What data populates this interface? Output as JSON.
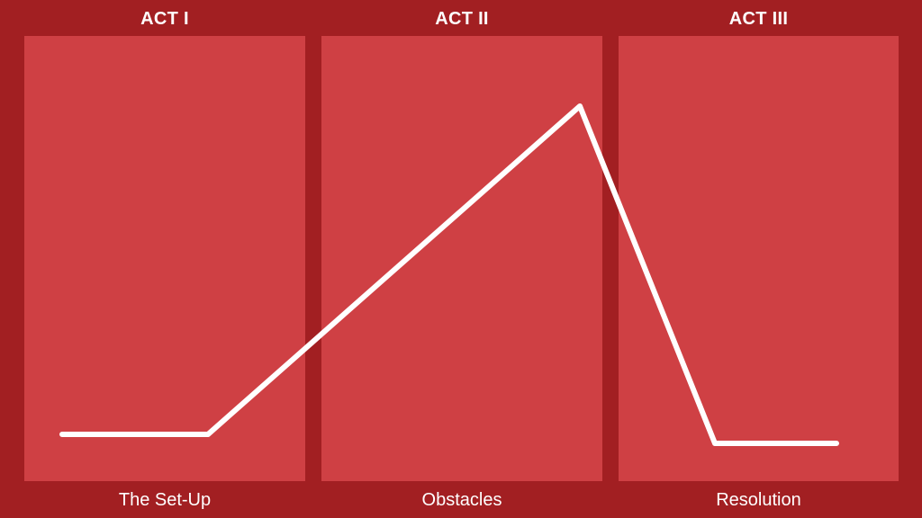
{
  "acts": [
    {
      "title": "ACT I",
      "caption": "The Set-Up"
    },
    {
      "title": "ACT II",
      "caption": "Obstacles"
    },
    {
      "title": "ACT III",
      "caption": "Resolution"
    }
  ],
  "colors": {
    "background": "#a21f22",
    "panel": "#cf4044",
    "text": "#ffffff",
    "line": "#ffffff"
  }
}
